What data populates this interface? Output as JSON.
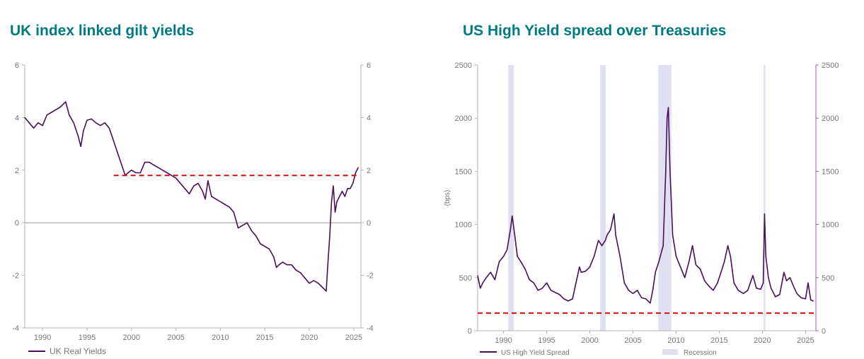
{
  "charts": [
    {
      "title": "UK index linked gilt yields",
      "legend": [
        "UK Real Yields"
      ],
      "colors": {
        "line": "#4a0e5c",
        "ref": "#d10f0f",
        "axis": "#b3b3b3",
        "text": "#777777"
      }
    },
    {
      "title": "US High Yield spread over Treasuries",
      "legend": [
        "US High Yield Spread",
        "Recession"
      ],
      "ylabel": "(bps)",
      "colors": {
        "line": "#4a0e5c",
        "ref": "#d10f0f",
        "recession": "#dfe0f0",
        "axis": "#b3b3b3",
        "text": "#777777",
        "right_axis": "#9b59b6"
      }
    }
  ],
  "chart_data": [
    {
      "type": "line",
      "title": "UK index linked gilt yields",
      "xlim": [
        1988,
        2025.8
      ],
      "ylim": [
        -4,
        6
      ],
      "x_ticks": [
        1990,
        1995,
        2000,
        2005,
        2010,
        2015,
        2020,
        2025
      ],
      "y_ticks": [
        -4,
        -2,
        0,
        2,
        4,
        6
      ],
      "secondary_y_ticks": [
        -4,
        -2,
        0,
        2,
        4,
        6
      ],
      "grid": false,
      "zero_line": 0,
      "legend_position": "bottom-left",
      "reference_line": {
        "y": 1.8,
        "x_start": 1998,
        "x_end": 2025.7,
        "style": "dashed"
      },
      "series": [
        {
          "name": "UK Real Yields",
          "x": [
            1988.0,
            1988.5,
            1989.0,
            1989.5,
            1990.0,
            1990.5,
            1991.0,
            1991.5,
            1992.0,
            1992.3,
            1992.6,
            1993.0,
            1993.5,
            1994.0,
            1994.3,
            1994.6,
            1995.0,
            1995.5,
            1996.0,
            1996.5,
            1997.0,
            1997.5,
            1998.0,
            1998.5,
            1999.0,
            1999.3,
            1999.6,
            2000.0,
            2000.5,
            2001.0,
            2001.5,
            2002.0,
            2002.5,
            2003.0,
            2003.5,
            2004.0,
            2004.5,
            2005.0,
            2005.5,
            2006.0,
            2006.5,
            2007.0,
            2007.5,
            2008.0,
            2008.3,
            2008.6,
            2009.0,
            2009.5,
            2010.0,
            2010.5,
            2011.0,
            2011.5,
            2012.0,
            2012.5,
            2013.0,
            2013.5,
            2014.0,
            2014.5,
            2015.0,
            2015.5,
            2016.0,
            2016.3,
            2016.6,
            2017.0,
            2017.5,
            2018.0,
            2018.5,
            2019.0,
            2019.5,
            2020.0,
            2020.5,
            2021.0,
            2021.3,
            2021.6,
            2021.9,
            2022.1,
            2022.3,
            2022.5,
            2022.7,
            2022.9,
            2023.1,
            2023.4,
            2023.7,
            2024.0,
            2024.3,
            2024.6,
            2024.9,
            2025.2,
            2025.5
          ],
          "y": [
            4.0,
            3.8,
            3.6,
            3.8,
            3.7,
            4.1,
            4.2,
            4.3,
            4.4,
            4.5,
            4.6,
            4.1,
            3.8,
            3.3,
            2.9,
            3.5,
            3.9,
            3.95,
            3.8,
            3.7,
            3.8,
            3.6,
            3.1,
            2.6,
            2.1,
            1.8,
            1.9,
            2.0,
            1.9,
            1.9,
            2.3,
            2.3,
            2.2,
            2.1,
            2.0,
            1.9,
            1.8,
            1.7,
            1.5,
            1.3,
            1.1,
            1.4,
            1.5,
            1.2,
            0.9,
            1.6,
            1.0,
            0.9,
            0.8,
            0.7,
            0.6,
            0.4,
            -0.2,
            -0.1,
            0.0,
            -0.3,
            -0.5,
            -0.8,
            -0.9,
            -1.0,
            -1.3,
            -1.7,
            -1.6,
            -1.5,
            -1.6,
            -1.6,
            -1.8,
            -1.9,
            -2.1,
            -2.3,
            -2.2,
            -2.3,
            -2.4,
            -2.5,
            -2.6,
            -1.5,
            -0.5,
            0.8,
            1.4,
            0.4,
            0.8,
            1.0,
            1.2,
            1.0,
            1.3,
            1.3,
            1.5,
            1.9,
            2.1
          ]
        }
      ]
    },
    {
      "type": "line",
      "title": "US High Yield spread over Treasuries",
      "ylabel": "(bps)",
      "xlim": [
        1987,
        2026.2
      ],
      "ylim": [
        0,
        2500
      ],
      "x_ticks": [
        1990,
        1995,
        2000,
        2005,
        2010,
        2015,
        2020,
        2025
      ],
      "y_ticks": [
        0,
        500,
        1000,
        1500,
        2000,
        2500
      ],
      "secondary_y_ticks": [
        0,
        500,
        1000,
        1500,
        2000,
        2500
      ],
      "grid": false,
      "legend_position": "bottom",
      "reference_line": {
        "y": 165,
        "x_start": 1987,
        "x_end": 2026.2,
        "style": "dashed"
      },
      "recessions": [
        [
          1990.55,
          1991.2
        ],
        [
          2001.2,
          2001.85
        ],
        [
          2007.95,
          2009.45
        ],
        [
          2020.15,
          2020.35
        ]
      ],
      "series": [
        {
          "name": "US High Yield Spread",
          "x": [
            1987.0,
            1987.3,
            1987.6,
            1988.0,
            1988.5,
            1989.0,
            1989.5,
            1990.0,
            1990.4,
            1990.8,
            1991.0,
            1991.3,
            1991.6,
            1992.0,
            1992.5,
            1993.0,
            1993.5,
            1994.0,
            1994.5,
            1995.0,
            1995.5,
            1996.0,
            1996.5,
            1997.0,
            1997.5,
            1998.0,
            1998.4,
            1998.8,
            1999.0,
            1999.5,
            2000.0,
            2000.5,
            2001.0,
            2001.4,
            2001.8,
            2002.0,
            2002.4,
            2002.8,
            2003.0,
            2003.5,
            2004.0,
            2004.5,
            2005.0,
            2005.5,
            2006.0,
            2006.5,
            2007.0,
            2007.3,
            2007.6,
            2008.0,
            2008.5,
            2008.8,
            2008.95,
            2009.1,
            2009.3,
            2009.6,
            2010.0,
            2010.5,
            2011.0,
            2011.5,
            2011.9,
            2012.3,
            2012.8,
            2013.3,
            2013.8,
            2014.3,
            2014.8,
            2015.2,
            2015.6,
            2016.0,
            2016.3,
            2016.7,
            2017.2,
            2017.8,
            2018.3,
            2018.9,
            2019.3,
            2019.8,
            2020.1,
            2020.25,
            2020.4,
            2020.7,
            2021.0,
            2021.5,
            2022.0,
            2022.5,
            2022.8,
            2023.2,
            2023.6,
            2024.0,
            2024.5,
            2025.0,
            2025.3,
            2025.6,
            2025.9
          ],
          "y": [
            520,
            400,
            450,
            500,
            550,
            480,
            650,
            700,
            760,
            950,
            1080,
            900,
            700,
            650,
            580,
            480,
            450,
            380,
            400,
            450,
            380,
            360,
            340,
            300,
            280,
            300,
            450,
            600,
            550,
            560,
            600,
            700,
            850,
            800,
            850,
            900,
            950,
            1100,
            900,
            700,
            450,
            380,
            350,
            380,
            310,
            300,
            260,
            380,
            550,
            650,
            800,
            1500,
            2000,
            2100,
            1500,
            900,
            700,
            600,
            500,
            650,
            800,
            620,
            580,
            470,
            420,
            380,
            450,
            550,
            650,
            800,
            700,
            450,
            380,
            350,
            380,
            520,
            400,
            390,
            450,
            1100,
            700,
            500,
            400,
            320,
            340,
            550,
            470,
            500,
            420,
            350,
            310,
            300,
            450,
            290,
            280
          ]
        }
      ]
    }
  ]
}
